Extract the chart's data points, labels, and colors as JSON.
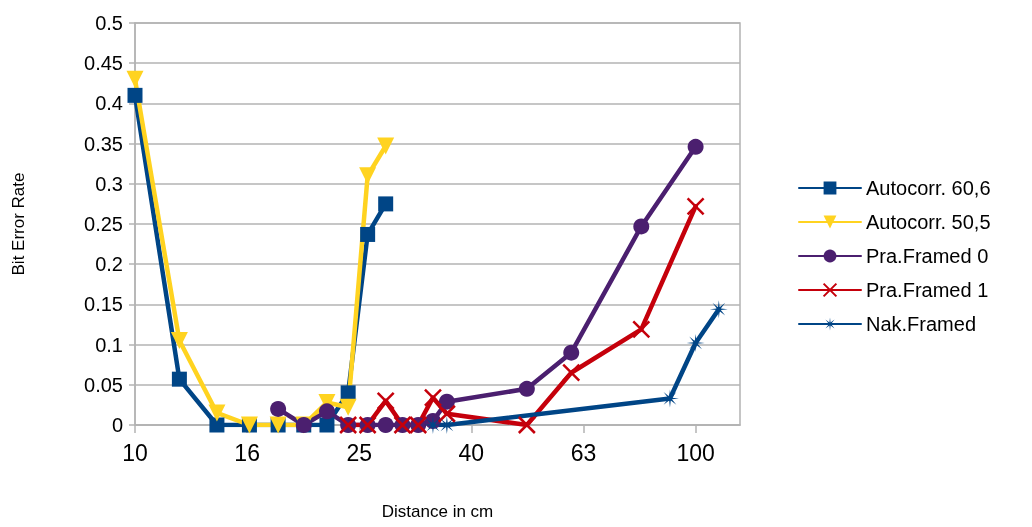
{
  "chart_data": {
    "type": "line",
    "xlabel": "Distance in cm",
    "ylabel": "Bit Error Rate",
    "log": "x",
    "xlim": [
      10,
      120
    ],
    "xticks": [
      10,
      {
        "value": 15.85,
        "label": "16"
      },
      {
        "value": 25.12,
        "label": "25"
      },
      {
        "value": 39.81,
        "label": "40"
      },
      {
        "value": 63.1,
        "label": "63"
      },
      100
    ],
    "ylim": [
      0,
      0.5
    ],
    "yticks": [
      0,
      0.05,
      0.1,
      0.15,
      0.2,
      0.25,
      0.3,
      0.35,
      0.4,
      0.45,
      0.5
    ],
    "grid": "y",
    "legend": "right",
    "series": [
      {
        "name": "Autocorr. 60,6",
        "color": "#004586",
        "marker": "square",
        "x": [
          10,
          12,
          14,
          16,
          18,
          20,
          22,
          24,
          26,
          28
        ],
        "values": [
          0.41,
          0.057,
          0,
          0,
          0,
          0,
          0,
          0.04,
          0.237,
          0.275
        ]
      },
      {
        "name": "Autocorr. 50,5",
        "color": "#ffd320",
        "marker": "triangle",
        "x": [
          10,
          12,
          14,
          16,
          18,
          20,
          22,
          24,
          26,
          28
        ],
        "values": [
          0.43,
          0.105,
          0.015,
          0,
          0,
          0,
          0.028,
          0.022,
          0.31,
          0.347
        ]
      },
      {
        "name": "Pra.Framed 0",
        "color": "#4b1f6f",
        "marker": "circle",
        "x": [
          18,
          20,
          22,
          24,
          26,
          28,
          30,
          32,
          34,
          36,
          50,
          60,
          80,
          100
        ],
        "values": [
          0.02,
          0,
          0.017,
          0,
          0,
          0,
          0,
          0,
          0.005,
          0.029,
          0.045,
          0.09,
          0.247,
          0.346
        ]
      },
      {
        "name": "Pra.Framed 1",
        "color": "#c5000b",
        "marker": "cross",
        "x": [
          24,
          26,
          28,
          30,
          32,
          34,
          36,
          50,
          60,
          80,
          100
        ],
        "values": [
          0,
          0,
          0.03,
          0,
          0,
          0.034,
          0.014,
          0,
          0.065,
          0.119,
          0.272
        ]
      },
      {
        "name": "Nak.Framed",
        "color": "#004586",
        "marker": "star",
        "x": [
          34,
          36,
          90,
          100,
          110
        ],
        "values": [
          0,
          0,
          0.033,
          0.102,
          0.144
        ]
      }
    ]
  }
}
